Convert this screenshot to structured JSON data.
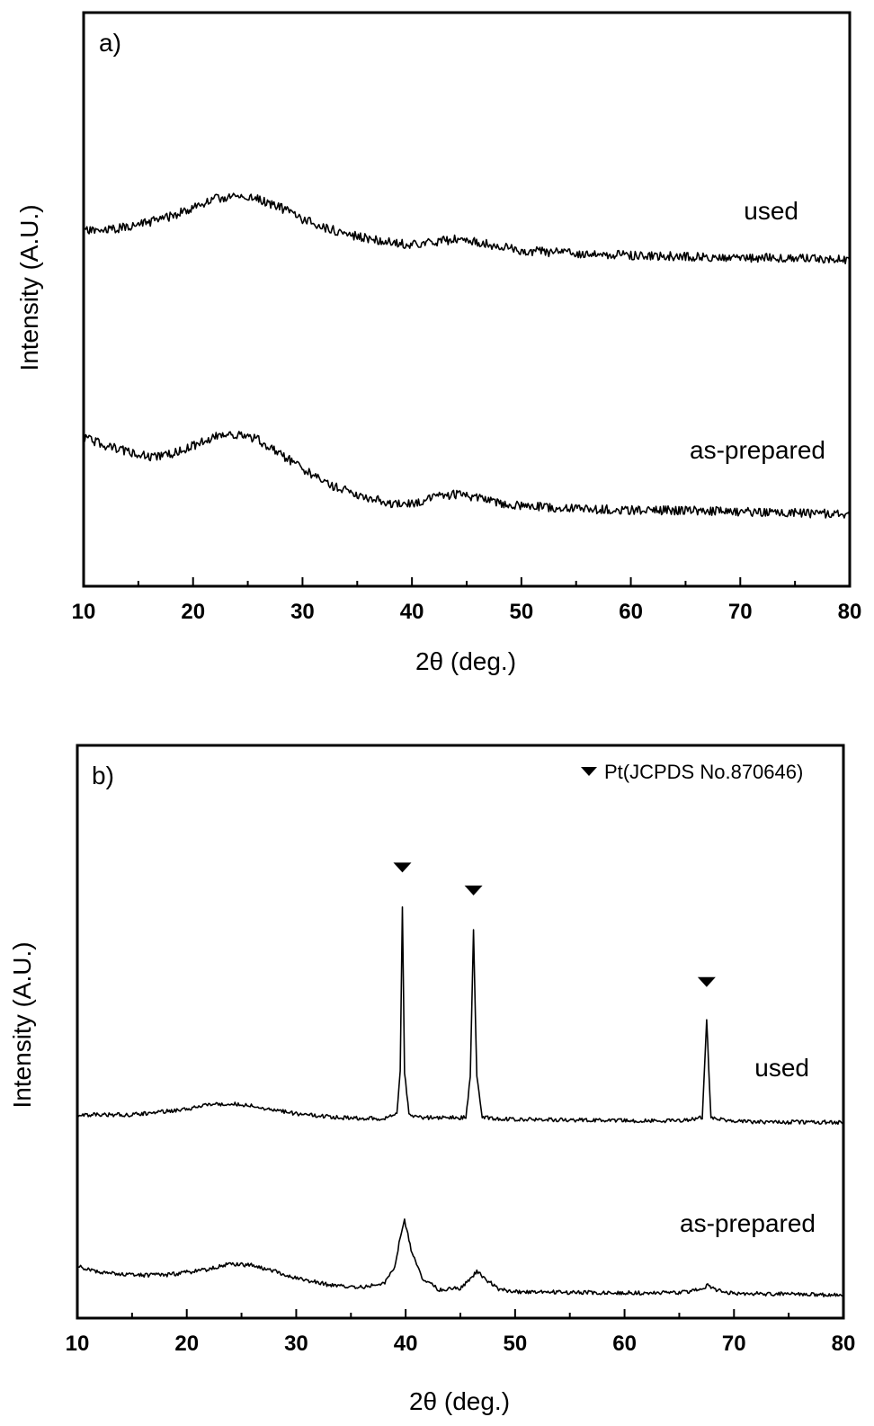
{
  "chart_data": [
    {
      "panel_label": "a)",
      "type": "line",
      "xlabel": "2θ (deg.)",
      "ylabel": "Intensity (A.U.)",
      "xlim": [
        10,
        80
      ],
      "xticks": [
        10,
        20,
        30,
        40,
        50,
        60,
        70,
        80
      ],
      "ylim": [
        0,
        1
      ],
      "series": [
        {
          "name": "used",
          "x": [
            10,
            12,
            15,
            18,
            20,
            22,
            24,
            26,
            28,
            30,
            32,
            35,
            38,
            40,
            42,
            44,
            46,
            48,
            50,
            55,
            60,
            65,
            70,
            75,
            80
          ],
          "y": [
            0.62,
            0.62,
            0.63,
            0.645,
            0.66,
            0.675,
            0.68,
            0.675,
            0.66,
            0.64,
            0.625,
            0.61,
            0.6,
            0.595,
            0.6,
            0.605,
            0.6,
            0.592,
            0.585,
            0.58,
            0.577,
            0.575,
            0.573,
            0.572,
            0.57
          ]
        },
        {
          "name": "as-prepared",
          "x": [
            10,
            12,
            14,
            16,
            18,
            20,
            22,
            24,
            26,
            28,
            30,
            32,
            35,
            38,
            40,
            42,
            44,
            46,
            48,
            50,
            55,
            60,
            65,
            70,
            75,
            80
          ],
          "y": [
            0.26,
            0.245,
            0.235,
            0.225,
            0.23,
            0.245,
            0.26,
            0.265,
            0.255,
            0.23,
            0.205,
            0.18,
            0.16,
            0.145,
            0.145,
            0.155,
            0.16,
            0.155,
            0.145,
            0.14,
            0.135,
            0.133,
            0.132,
            0.13,
            0.128,
            0.125
          ]
        }
      ]
    },
    {
      "panel_label": "b)",
      "type": "line",
      "xlabel": "2θ (deg.)",
      "ylabel": "Intensity (A.U.)",
      "xlim": [
        10,
        80
      ],
      "xticks": [
        10,
        20,
        30,
        40,
        50,
        60,
        70,
        80
      ],
      "ylim": [
        0,
        1
      ],
      "legend": {
        "marker": "down-triangle",
        "text": "Pt(JCPDS No.870646)",
        "placement": "top-right"
      },
      "reference_peaks": [
        39.7,
        46.2,
        67.5
      ],
      "series": [
        {
          "name": "used",
          "x": [
            10,
            15,
            20,
            22,
            24,
            26,
            28,
            30,
            34,
            38,
            39.2,
            39.5,
            39.7,
            39.9,
            40.3,
            41,
            45.5,
            45.9,
            46.2,
            46.5,
            47,
            50,
            55,
            60,
            65,
            67.1,
            67.5,
            67.9,
            70,
            75,
            80
          ],
          "y": [
            0.355,
            0.355,
            0.365,
            0.372,
            0.375,
            0.37,
            0.363,
            0.357,
            0.35,
            0.348,
            0.355,
            0.43,
            0.72,
            0.43,
            0.355,
            0.35,
            0.35,
            0.42,
            0.68,
            0.42,
            0.35,
            0.347,
            0.346,
            0.345,
            0.344,
            0.35,
            0.52,
            0.35,
            0.343,
            0.342,
            0.342
          ]
        },
        {
          "name": "as-prepared",
          "x": [
            10,
            12,
            15,
            18,
            20,
            22,
            24,
            26,
            28,
            30,
            33,
            36,
            38,
            39,
            39.5,
            39.9,
            40.5,
            41.5,
            43,
            45,
            46,
            46.5,
            47.2,
            48.5,
            50,
            55,
            60,
            65,
            67,
            67.6,
            68.5,
            70,
            75,
            80
          ],
          "y": [
            0.09,
            0.08,
            0.075,
            0.075,
            0.08,
            0.085,
            0.095,
            0.092,
            0.082,
            0.07,
            0.058,
            0.054,
            0.06,
            0.09,
            0.14,
            0.17,
            0.12,
            0.07,
            0.05,
            0.052,
            0.07,
            0.083,
            0.07,
            0.05,
            0.046,
            0.045,
            0.044,
            0.044,
            0.05,
            0.058,
            0.048,
            0.043,
            0.042,
            0.04
          ]
        }
      ]
    }
  ]
}
